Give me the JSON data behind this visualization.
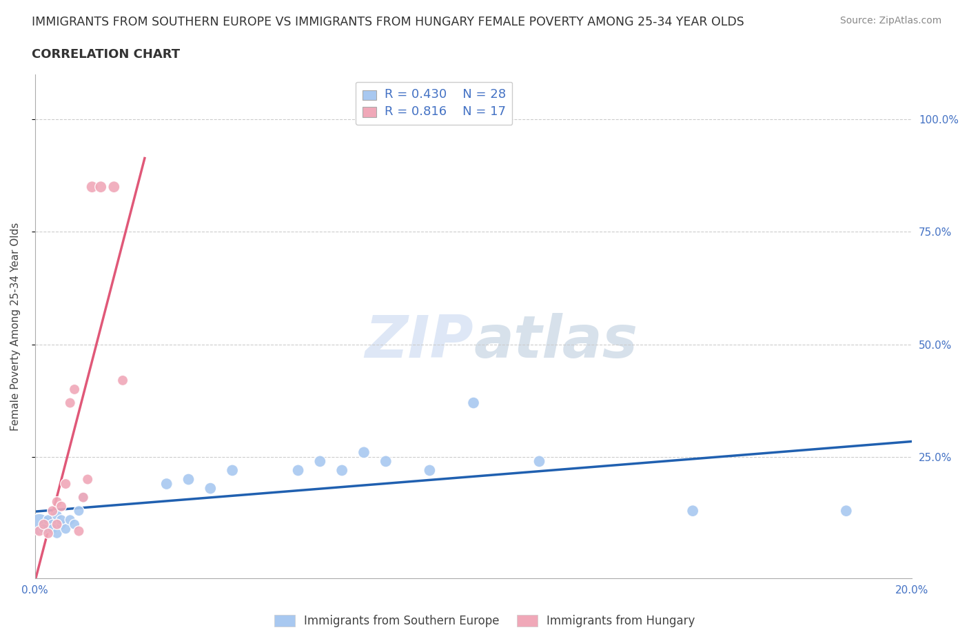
{
  "title": "IMMIGRANTS FROM SOUTHERN EUROPE VS IMMIGRANTS FROM HUNGARY FEMALE POVERTY AMONG 25-34 YEAR OLDS",
  "subtitle": "CORRELATION CHART",
  "source": "Source: ZipAtlas.com",
  "ylabel": "Female Poverty Among 25-34 Year Olds",
  "xlim": [
    0.0,
    0.2
  ],
  "ylim": [
    -0.02,
    1.1
  ],
  "watermark_zip": "ZIP",
  "watermark_atlas": "atlas",
  "legend_R1": "R = 0.430",
  "legend_N1": "N = 28",
  "legend_R2": "R = 0.816",
  "legend_N2": "N = 17",
  "color_blue": "#a8c8f0",
  "color_pink": "#f0a8b8",
  "color_blue_line": "#2060b0",
  "color_pink_line": "#e05878",
  "color_title": "#333333",
  "color_source": "#888888",
  "color_tick": "#4472c4",
  "blue_x": [
    0.001,
    0.002,
    0.003,
    0.004,
    0.004,
    0.005,
    0.005,
    0.006,
    0.006,
    0.007,
    0.008,
    0.009,
    0.01,
    0.011,
    0.03,
    0.035,
    0.04,
    0.045,
    0.06,
    0.065,
    0.07,
    0.075,
    0.08,
    0.09,
    0.1,
    0.115,
    0.15,
    0.185
  ],
  "blue_y": [
    0.1,
    0.09,
    0.11,
    0.1,
    0.09,
    0.12,
    0.08,
    0.1,
    0.11,
    0.09,
    0.11,
    0.1,
    0.13,
    0.16,
    0.19,
    0.2,
    0.18,
    0.22,
    0.22,
    0.24,
    0.22,
    0.26,
    0.24,
    0.22,
    0.37,
    0.24,
    0.13,
    0.13
  ],
  "blue_size": [
    500,
    120,
    120,
    120,
    120,
    120,
    120,
    120,
    120,
    120,
    120,
    120,
    120,
    120,
    150,
    150,
    150,
    150,
    150,
    150,
    150,
    150,
    150,
    150,
    150,
    150,
    150,
    150
  ],
  "pink_x": [
    0.001,
    0.002,
    0.003,
    0.004,
    0.005,
    0.005,
    0.006,
    0.007,
    0.008,
    0.009,
    0.01,
    0.011,
    0.012,
    0.013,
    0.015,
    0.018,
    0.02
  ],
  "pink_y": [
    0.085,
    0.1,
    0.08,
    0.13,
    0.15,
    0.1,
    0.14,
    0.19,
    0.37,
    0.4,
    0.085,
    0.16,
    0.2,
    0.85,
    0.85,
    0.85,
    0.42
  ],
  "pink_size": [
    120,
    120,
    120,
    120,
    120,
    120,
    120,
    120,
    120,
    120,
    120,
    120,
    120,
    150,
    150,
    150,
    120
  ],
  "pink_line_x": [
    -0.002,
    0.03
  ],
  "ytick_positions": [
    0.25,
    0.5,
    0.75,
    1.0
  ],
  "ytick_labels": [
    "25.0%",
    "50.0%",
    "75.0%",
    "100.0%"
  ],
  "xtick_positions": [
    0.0,
    0.05,
    0.1,
    0.15,
    0.2
  ],
  "xtick_labels": [
    "0.0%",
    "",
    "",
    "",
    "20.0%"
  ]
}
